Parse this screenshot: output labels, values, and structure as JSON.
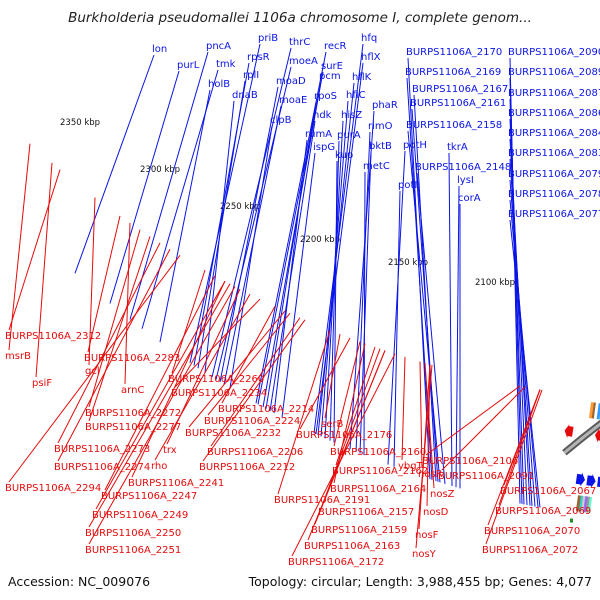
{
  "title": "Burkholderia pseudomallei 1106a chromosome I, complete genom...",
  "footer": {
    "accession": "Accession: NC_009076",
    "topology": "Topology: circular; Length: 3,988,455 bp; Genes: 4,077"
  },
  "colors": {
    "forward": "#0a14e6",
    "reverse": "#e60a0a",
    "backbone": "#8a8a8a",
    "rna": "#1e8c1e"
  },
  "scale_marks": [
    "2350 kbp",
    "2300 kbp",
    "2250 kbp",
    "2200 kbp",
    "2150 kbp",
    "2100 kbp"
  ],
  "forward_labels": [
    "lon",
    "purL",
    "pncA",
    "tmk",
    "holB",
    "priB",
    "rpsR",
    "rplI",
    "dnaB",
    "thrC",
    "moeA",
    "moaD",
    "moaE",
    "clpB",
    "recR",
    "surE",
    "pcm",
    "rpoS",
    "ndk",
    "rumA",
    "ispG",
    "hfq",
    "hflX",
    "hflK",
    "hflC",
    "hisZ",
    "purA",
    "kup",
    "phaR",
    "rimO",
    "bktB",
    "metC",
    "potH",
    "potI",
    "BURPS1106A_2170",
    "BURPS1106A_2169",
    "BURPS1106A_2167",
    "BURPS1106A_2161",
    "BURPS1106A_2158",
    "BURPS1106A_2148",
    "tkrA",
    "lysI",
    "corA",
    "BURPS1106A_2090",
    "BURPS1106A_2089",
    "BURPS1106A_2087",
    "BURPS1106A_2086",
    "BURPS1106A_2084",
    "BURPS1106A_2083",
    "BURPS1106A_2079",
    "BURPS1106A_2078",
    "BURPS1106A_2077"
  ],
  "reverse_labels": [
    "BURPS1106A_2312",
    "msrB",
    "psiF",
    "gcl",
    "BURPS1106A_2283",
    "arnC",
    "BURPS1106A_2260",
    "BURPS1106A_2272",
    "BURPS1106A_2277",
    "BURPS1106A_2273",
    "BURPS1106A_2274",
    "BURPS1106A_2294",
    "trx",
    "rho",
    "BURPS1106A_2247",
    "BURPS1106A_2241",
    "BURPS1106A_2249",
    "BURPS1106A_2250",
    "BURPS1106A_2251",
    "BURPS1106A_2234",
    "BURPS1106A_2214",
    "BURPS1106A_2224",
    "BURPS1106A_2232",
    "BURPS1106A_2206",
    "BURPS1106A_2212",
    "BURPS1106A_2191",
    "serB",
    "BURPS1106A_2176",
    "BURPS1106A_2160",
    "BURPS1106A_2162",
    "BURPS1106A_2164",
    "BURPS1106A_2157",
    "BURPS1106A_2159",
    "BURPS1106A_2163",
    "BURPS1106A_2172",
    "ybgT",
    "nosR",
    "nosZ",
    "nosD",
    "nosF",
    "nosY",
    "BURPS1106A_2106",
    "BURPS1106A_2091",
    "BURPS1106A_2067",
    "BURPS1106A_2069",
    "BURPS1106A_2070",
    "BURPS1106A_2072"
  ]
}
